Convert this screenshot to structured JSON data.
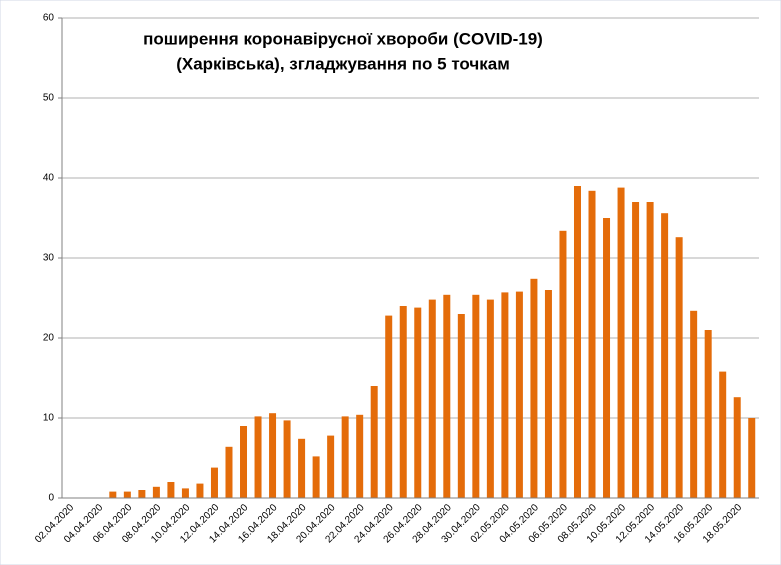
{
  "chart_data": {
    "type": "bar",
    "title": [
      "поширення коронавірусної хвороби (COVID-19)",
      "(Харківська), згладжування  по 5 точкам"
    ],
    "categories": [
      "02.04.2020",
      null,
      "04.04.2020",
      null,
      "06.04.2020",
      null,
      "08.04.2020",
      null,
      "10.04.2020",
      null,
      "12.04.2020",
      null,
      "14.04.2020",
      null,
      "16.04.2020",
      null,
      "18.04.2020",
      null,
      "20.04.2020",
      null,
      "22.04.2020",
      null,
      "24.04.2020",
      null,
      "26.04.2020",
      null,
      "28.04.2020",
      null,
      "30.04.2020",
      null,
      "02.05.2020",
      null,
      "04.05.2020",
      null,
      "06.05.2020",
      null,
      "08.05.2020",
      null,
      "10.05.2020",
      null,
      "12.05.2020",
      null,
      "14.05.2020",
      null,
      "16.05.2020",
      null,
      "18.05.2020",
      null
    ],
    "values": [
      0,
      0,
      0,
      0.8,
      0.8,
      1.0,
      1.4,
      2.0,
      1.2,
      1.8,
      3.8,
      6.4,
      9.0,
      10.2,
      10.6,
      9.7,
      7.4,
      5.2,
      7.8,
      10.2,
      10.4,
      14.0,
      22.8,
      24.0,
      23.8,
      24.8,
      25.4,
      23.0,
      25.4,
      24.8,
      25.7,
      25.8,
      27.4,
      26.0,
      33.4,
      39.0,
      38.4,
      35.0,
      38.8,
      37.0,
      37.0,
      35.6,
      32.6,
      23.4,
      21.0,
      15.8,
      12.6,
      10.0
    ],
    "color": "#e46c0a",
    "ylim": [
      0,
      60
    ],
    "yticks": [
      0,
      10,
      20,
      30,
      40,
      50,
      60
    ],
    "grid": true
  }
}
